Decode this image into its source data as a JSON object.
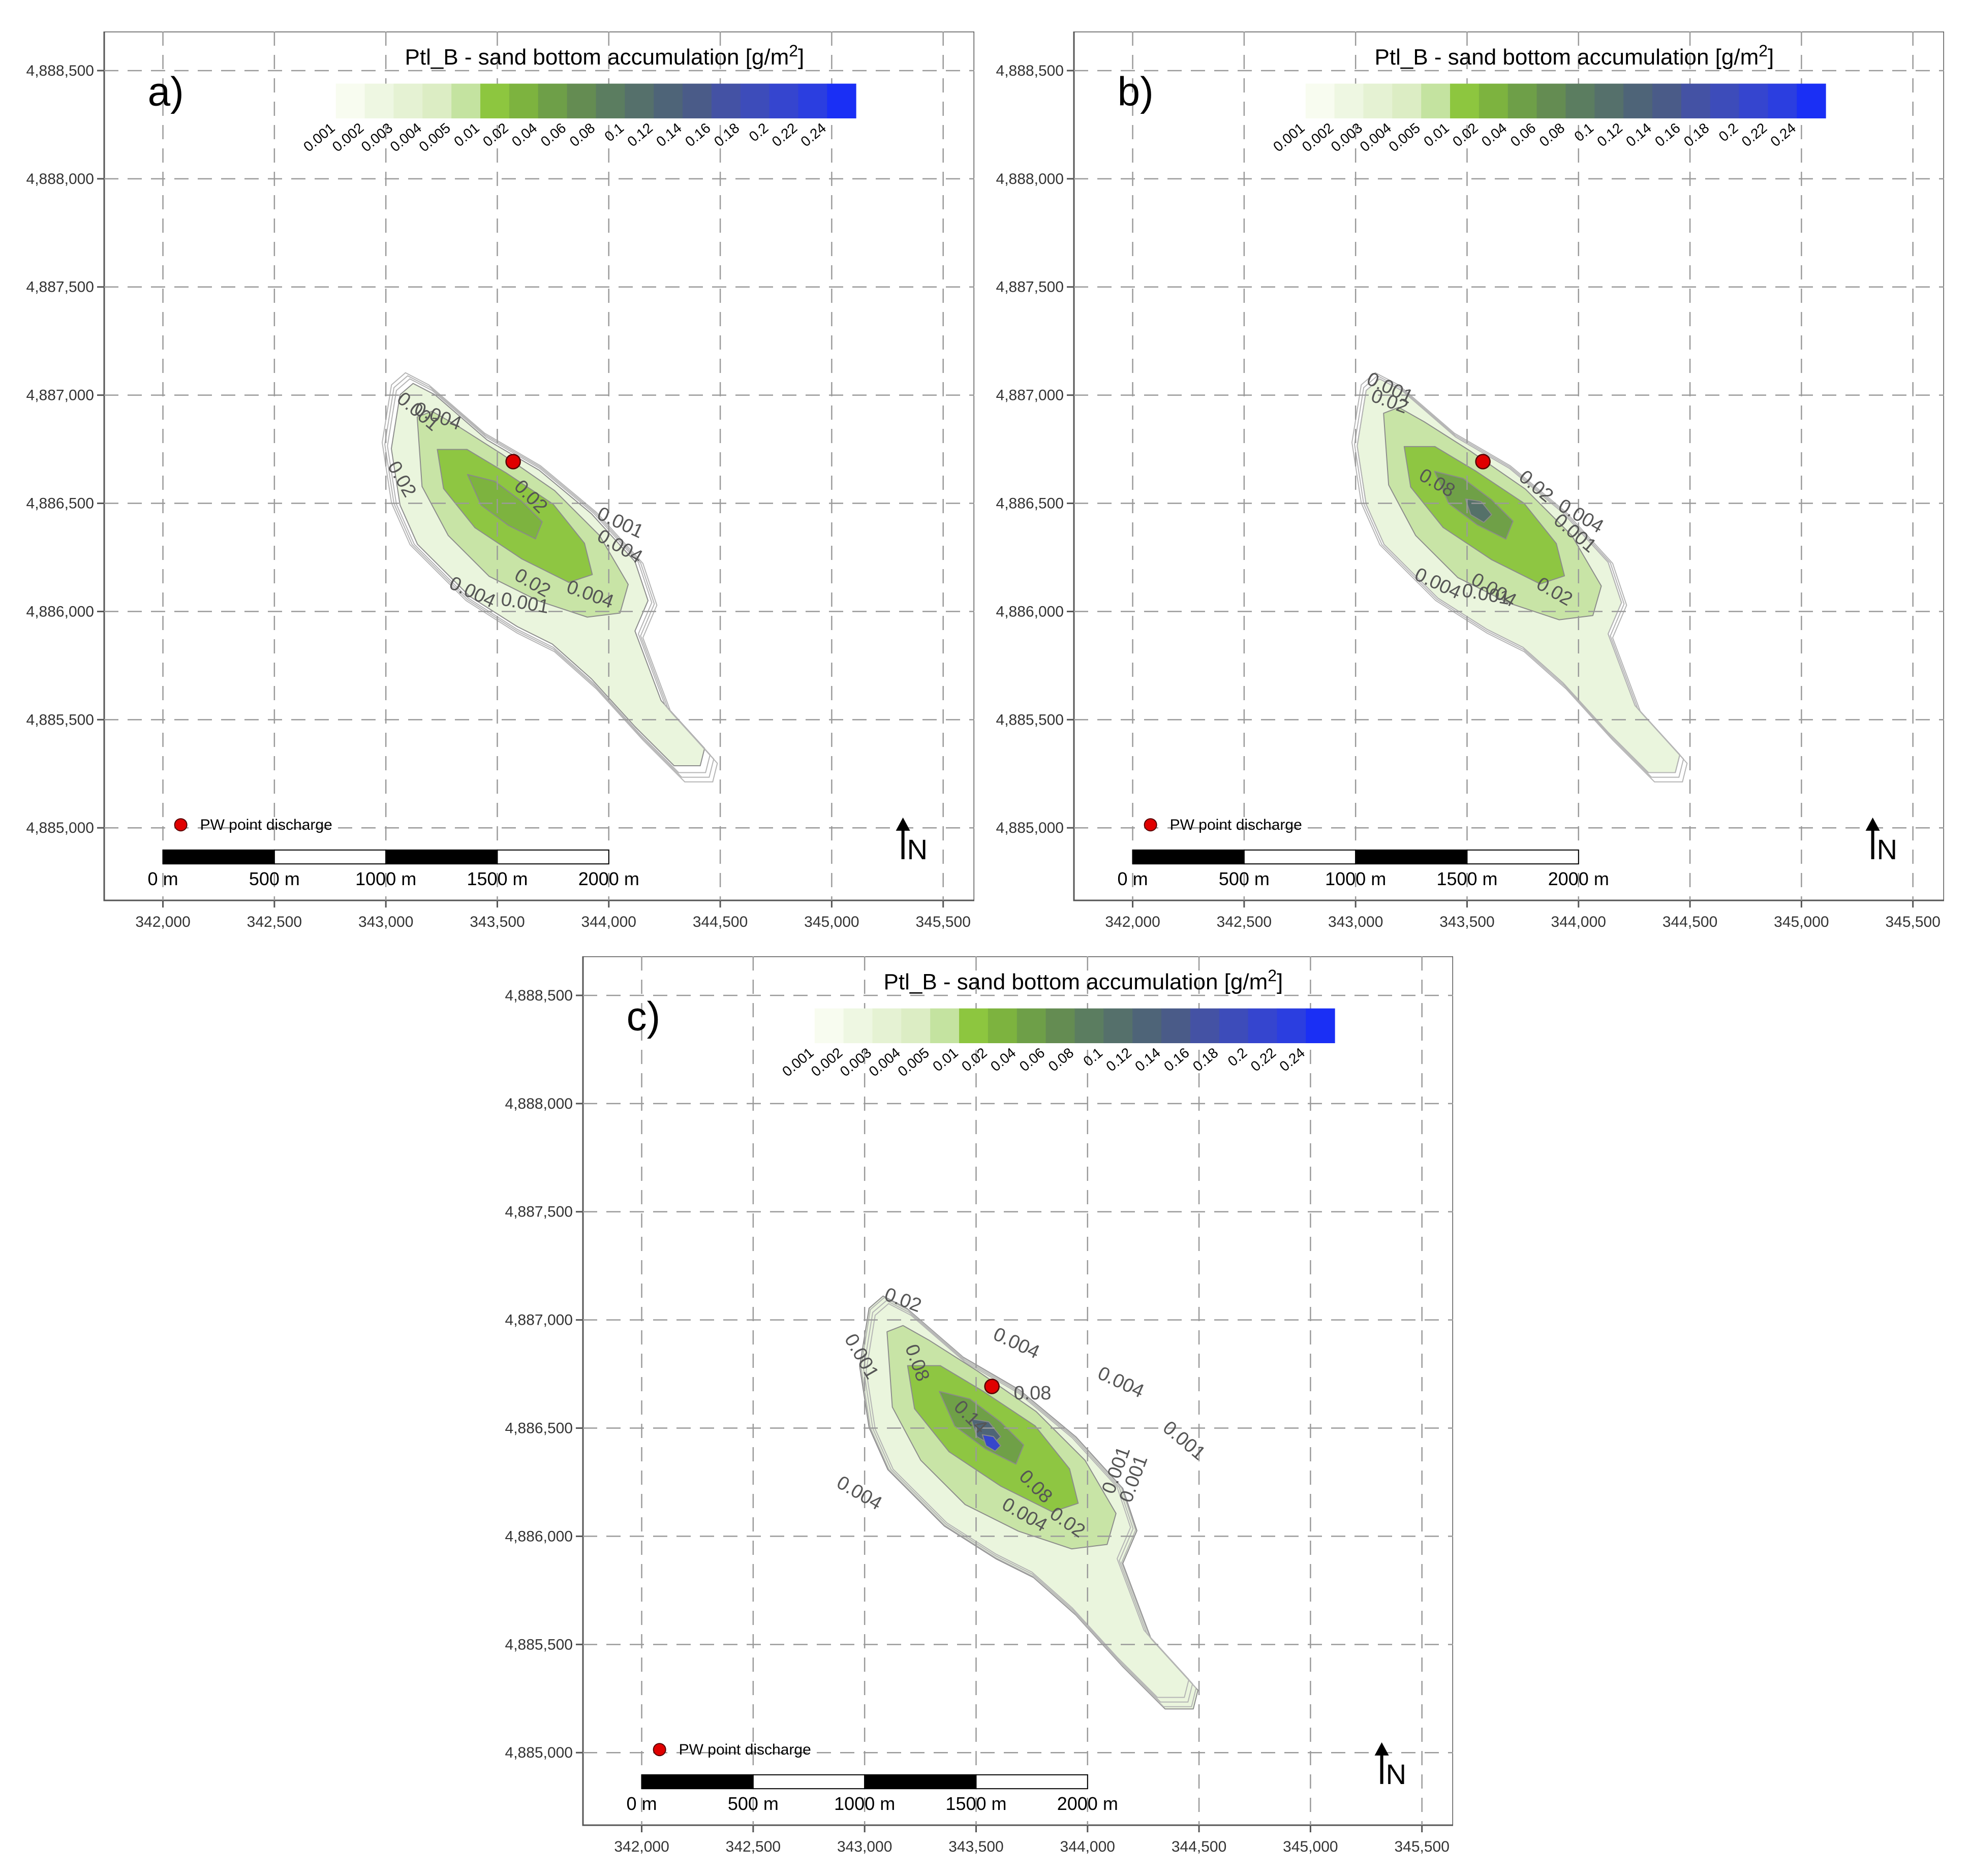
{
  "panels": [
    {
      "id": "a",
      "label": "a)",
      "title": "Ptl_B - sand bottom accumulation [g/m",
      "title_sup": "2",
      "title_close": "]",
      "contour_labels": [
        "0.001",
        "0.004",
        "0.02",
        "0.02",
        "0.001",
        "0.004",
        "0.004",
        "0.02",
        "0.004",
        "0.001"
      ]
    },
    {
      "id": "b",
      "label": "b)",
      "title": "Ptl_B - sand bottom accumulation [g/m",
      "title_sup": "2",
      "title_close": "]",
      "contour_labels": [
        "0.001",
        "0.02",
        "0.08",
        "0.02",
        "0.004",
        "0.001",
        "0.004",
        "0.02",
        "0.004",
        "0.001"
      ]
    },
    {
      "id": "c",
      "label": "c)",
      "title": "Ptl_B - sand bottom accumulation [g/m",
      "title_sup": "2",
      "title_close": "]",
      "contour_labels": [
        "0.02",
        "0.001",
        "0.08",
        "0.004",
        "0.004",
        "0.001",
        "0.14",
        "0.08",
        "0.08",
        "0.004",
        "0.001",
        "0.001",
        "0.004",
        "0.02"
      ]
    }
  ],
  "legend": {
    "colors": [
      "#ffffff",
      "#f8fcf0",
      "#eef7e2",
      "#e5f2d3",
      "#dcedc4",
      "#c4e3a0",
      "#8dc63f",
      "#7db33f",
      "#6e9f48",
      "#648c52",
      "#5b7d60",
      "#55706b",
      "#4e6478",
      "#4a5b88",
      "#4452a4",
      "#3d4cba",
      "#3545cf",
      "#2b3ee0",
      "#1a2ff5"
    ],
    "labels": [
      "0.001",
      "0.002",
      "0.003",
      "0.004",
      "0.005",
      "0.01",
      "0.02",
      "0.04",
      "0.06",
      "0.08",
      "0.1",
      "0.12",
      "0.14",
      "0.16",
      "0.18",
      "0.2",
      "0.22",
      "0.24"
    ]
  },
  "axes": {
    "x_ticks": [
      "342,000",
      "342,500",
      "343,000",
      "343,500",
      "344,000",
      "344,500",
      "345,000",
      "345,500"
    ],
    "y_ticks": [
      "4,888,500",
      "4,888,000",
      "4,887,500",
      "4,887,000",
      "4,886,500",
      "4,886,000",
      "4,885,500",
      "4,885,000"
    ]
  },
  "scale_bar": [
    "0 m",
    "500 m",
    "1000 m",
    "1500 m",
    "2000 m"
  ],
  "discharge_label": "PW point discharge",
  "north_label": "N",
  "colors": {
    "discharge": "#e00000",
    "grid": "#9a9a9a",
    "frame": "#555555"
  }
}
